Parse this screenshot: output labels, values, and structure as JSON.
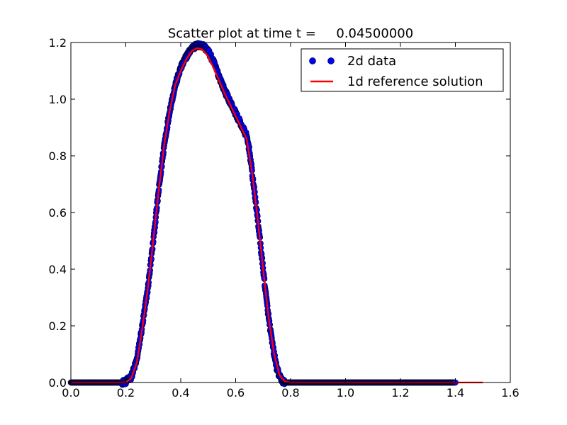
{
  "chart_data": {
    "type": "scatter",
    "title": "Scatter plot at time t =     0.04500000",
    "xlabel": "",
    "ylabel": "",
    "xlim": [
      0.0,
      1.6
    ],
    "ylim": [
      0.0,
      1.2
    ],
    "xticks": [
      0.0,
      0.2,
      0.4,
      0.6,
      0.8,
      1.0,
      1.2,
      1.4,
      1.6
    ],
    "yticks": [
      0.0,
      0.2,
      0.4,
      0.6,
      0.8,
      1.0,
      1.2
    ],
    "xtick_labels": [
      "0.0",
      "0.2",
      "0.4",
      "0.6",
      "0.8",
      "1.0",
      "1.2",
      "1.4",
      "1.6"
    ],
    "ytick_labels": [
      "0.0",
      "0.2",
      "0.4",
      "0.6",
      "0.8",
      "1.0",
      "1.2"
    ],
    "grid": false,
    "legend_position": "top-right",
    "series": [
      {
        "name": "2d data",
        "kind": "scatter",
        "color": "#0000ff",
        "edge_color": "#000033",
        "x_range": [
          0.0,
          1.4
        ],
        "points": [
          [
            0.0,
            0.0
          ],
          [
            0.05,
            0.0
          ],
          [
            0.1,
            0.0
          ],
          [
            0.15,
            0.0
          ],
          [
            0.18,
            0.0
          ],
          [
            0.2,
            0.003
          ],
          [
            0.22,
            0.02
          ],
          [
            0.24,
            0.08
          ],
          [
            0.26,
            0.2
          ],
          [
            0.28,
            0.33
          ],
          [
            0.3,
            0.5
          ],
          [
            0.32,
            0.68
          ],
          [
            0.34,
            0.84
          ],
          [
            0.36,
            0.96
          ],
          [
            0.38,
            1.05
          ],
          [
            0.4,
            1.11
          ],
          [
            0.42,
            1.15
          ],
          [
            0.44,
            1.18
          ],
          [
            0.46,
            1.19
          ],
          [
            0.48,
            1.19
          ],
          [
            0.5,
            1.17
          ],
          [
            0.52,
            1.13
          ],
          [
            0.54,
            1.08
          ],
          [
            0.56,
            1.03
          ],
          [
            0.58,
            0.99
          ],
          [
            0.6,
            0.95
          ],
          [
            0.62,
            0.91
          ],
          [
            0.64,
            0.87
          ],
          [
            0.65,
            0.82
          ],
          [
            0.66,
            0.74
          ],
          [
            0.67,
            0.66
          ],
          [
            0.68,
            0.58
          ],
          [
            0.69,
            0.49
          ],
          [
            0.7,
            0.4
          ],
          [
            0.71,
            0.31
          ],
          [
            0.72,
            0.23
          ],
          [
            0.73,
            0.16
          ],
          [
            0.74,
            0.1
          ],
          [
            0.75,
            0.05
          ],
          [
            0.76,
            0.02
          ],
          [
            0.77,
            0.006
          ],
          [
            0.78,
            0.0
          ],
          [
            0.8,
            0.0
          ],
          [
            0.9,
            0.0
          ],
          [
            1.0,
            0.0
          ],
          [
            1.1,
            0.0
          ],
          [
            1.2,
            0.0
          ],
          [
            1.3,
            0.0
          ],
          [
            1.4,
            0.0
          ]
        ]
      },
      {
        "name": "1d reference solution",
        "kind": "line",
        "color": "#ff0000",
        "x_range": [
          0.0,
          1.5
        ],
        "points": [
          [
            0.0,
            0.0
          ],
          [
            0.2,
            0.0
          ],
          [
            0.22,
            0.015
          ],
          [
            0.24,
            0.07
          ],
          [
            0.26,
            0.19
          ],
          [
            0.28,
            0.33
          ],
          [
            0.3,
            0.5
          ],
          [
            0.32,
            0.68
          ],
          [
            0.34,
            0.84
          ],
          [
            0.36,
            0.96
          ],
          [
            0.38,
            1.05
          ],
          [
            0.4,
            1.1
          ],
          [
            0.42,
            1.14
          ],
          [
            0.44,
            1.17
          ],
          [
            0.46,
            1.18
          ],
          [
            0.48,
            1.175
          ],
          [
            0.5,
            1.15
          ],
          [
            0.52,
            1.11
          ],
          [
            0.54,
            1.065
          ],
          [
            0.56,
            1.02
          ],
          [
            0.58,
            0.98
          ],
          [
            0.6,
            0.94
          ],
          [
            0.62,
            0.9
          ],
          [
            0.64,
            0.86
          ],
          [
            0.66,
            0.74
          ],
          [
            0.68,
            0.58
          ],
          [
            0.7,
            0.4
          ],
          [
            0.72,
            0.23
          ],
          [
            0.74,
            0.1
          ],
          [
            0.76,
            0.025
          ],
          [
            0.78,
            0.003
          ],
          [
            0.8,
            0.0
          ],
          [
            1.5,
            0.0
          ]
        ]
      }
    ]
  }
}
